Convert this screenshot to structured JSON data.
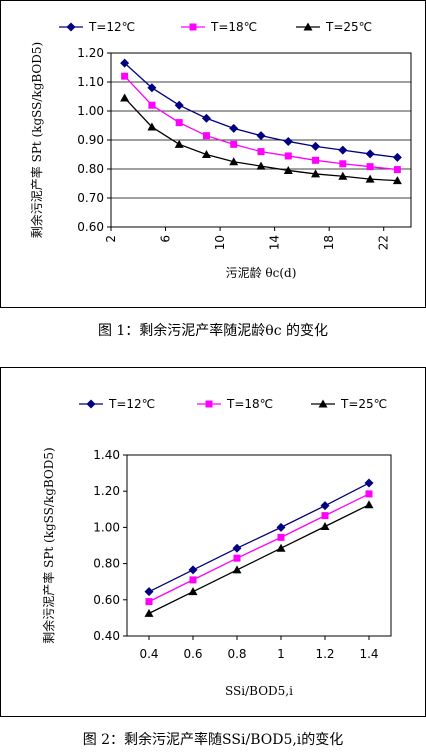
{
  "chart_data": [
    {
      "type": "line",
      "caption": "图 1：剩余污泥产率随泥龄θc 的变化",
      "xlabel": "污泥龄 θc(d)",
      "ylabel": "剩余污泥产率 SPt (kgSS/kgBOD5)",
      "xlim": [
        2,
        24
      ],
      "ylim": [
        0.6,
        1.2
      ],
      "xticks": [
        "2",
        "6",
        "10",
        "14",
        "18",
        "22"
      ],
      "yticks": [
        "0.60",
        "0.70",
        "0.80",
        "0.90",
        "1.00",
        "1.10",
        "1.20"
      ],
      "grid": true,
      "legend_position": "top",
      "x": [
        3,
        5,
        7,
        9,
        11,
        13,
        15,
        17,
        19,
        21,
        23
      ],
      "series": [
        {
          "name": "T=12℃",
          "color": "#000080",
          "marker": "diamond",
          "values": [
            1.165,
            1.08,
            1.02,
            0.975,
            0.94,
            0.915,
            0.895,
            0.878,
            0.865,
            0.852,
            0.84
          ]
        },
        {
          "name": "T=18℃",
          "color": "#FF00FF",
          "marker": "square",
          "values": [
            1.12,
            1.02,
            0.96,
            0.915,
            0.885,
            0.86,
            0.845,
            0.83,
            0.818,
            0.808,
            0.798
          ]
        },
        {
          "name": "T=25℃",
          "color": "#000000",
          "marker": "triangle",
          "values": [
            1.045,
            0.945,
            0.885,
            0.85,
            0.825,
            0.81,
            0.795,
            0.783,
            0.775,
            0.765,
            0.76
          ]
        }
      ]
    },
    {
      "type": "line",
      "caption": "图 2：剩余污泥产率随SSi/BOD5,i的变化",
      "xlabel": "SSi/BOD5,i",
      "ylabel": "剩余污泥产率 SPt (kgSS/kgBOD5)",
      "xlim": [
        0.3,
        1.5
      ],
      "ylim": [
        0.4,
        1.4
      ],
      "xticks": [
        "0.4",
        "0.6",
        "0.8",
        "1",
        "1.2",
        "1.4"
      ],
      "yticks": [
        "0.40",
        "0.60",
        "0.80",
        "1.00",
        "1.20",
        "1.40"
      ],
      "grid": false,
      "legend_position": "top",
      "x": [
        0.4,
        0.6,
        0.8,
        1.0,
        1.2,
        1.4
      ],
      "series": [
        {
          "name": "T=12℃",
          "color": "#000080",
          "marker": "diamond",
          "values": [
            0.645,
            0.765,
            0.885,
            1.0,
            1.12,
            1.245
          ]
        },
        {
          "name": "T=18℃",
          "color": "#FF00FF",
          "marker": "square",
          "values": [
            0.59,
            0.71,
            0.83,
            0.945,
            1.065,
            1.185
          ]
        },
        {
          "name": "T=25℃",
          "color": "#000000",
          "marker": "triangle",
          "values": [
            0.525,
            0.645,
            0.765,
            0.885,
            1.005,
            1.125
          ]
        }
      ]
    }
  ]
}
